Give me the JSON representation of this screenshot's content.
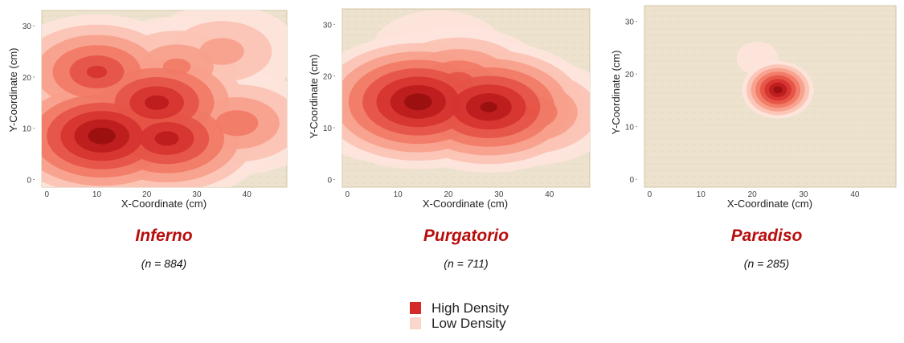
{
  "chart_data": [
    {
      "type": "heatmap",
      "title": "Inferno",
      "subtitle": "(n = 884)",
      "xlabel": "X-Coordinate (cm)",
      "ylabel": "Y-Coordinate (cm)",
      "xlim": [
        -1,
        48
      ],
      "ylim": [
        -1.5,
        33
      ],
      "xticks": [
        0,
        10,
        20,
        30,
        40
      ],
      "yticks": [
        0,
        10,
        20,
        30
      ],
      "density_peaks": [
        {
          "x": 11,
          "y": 8.5,
          "weight": 1.0
        },
        {
          "x": 22,
          "y": 15,
          "weight": 0.85
        },
        {
          "x": 24,
          "y": 8,
          "weight": 0.85
        },
        {
          "x": 10,
          "y": 21,
          "weight": 0.7
        },
        {
          "x": 26,
          "y": 22,
          "weight": 0.45
        },
        {
          "x": 38,
          "y": 11,
          "weight": 0.5
        },
        {
          "x": 35,
          "y": 25,
          "weight": 0.35
        }
      ]
    },
    {
      "type": "heatmap",
      "title": "Purgatorio",
      "subtitle": "(n = 711)",
      "xlabel": "X-Coordinate (cm)",
      "ylabel": "Y-Coordinate (cm)",
      "xlim": [
        -1,
        48
      ],
      "ylim": [
        -1.5,
        33
      ],
      "xticks": [
        0,
        10,
        20,
        30,
        40
      ],
      "yticks": [
        0,
        10,
        20,
        30
      ],
      "density_peaks": [
        {
          "x": 14,
          "y": 15,
          "weight": 1.0
        },
        {
          "x": 28,
          "y": 14,
          "weight": 0.95
        },
        {
          "x": 22,
          "y": 19,
          "weight": 0.6
        },
        {
          "x": 36,
          "y": 13,
          "weight": 0.55
        },
        {
          "x": 8,
          "y": 13,
          "weight": 0.45
        },
        {
          "x": 18,
          "y": 25,
          "weight": 0.1
        }
      ]
    },
    {
      "type": "heatmap",
      "title": "Paradiso",
      "subtitle": "(n = 285)",
      "xlabel": "X-Coordinate (cm)",
      "ylabel": "Y-Coordinate (cm)",
      "xlim": [
        -1,
        48
      ],
      "ylim": [
        -1.5,
        33
      ],
      "xticks": [
        0,
        10,
        20,
        30,
        40
      ],
      "yticks": [
        0,
        10,
        20,
        30
      ],
      "density_peaks": [
        {
          "x": 25,
          "y": 17,
          "weight": 1.0
        },
        {
          "x": 21,
          "y": 23,
          "weight": 0.06
        }
      ]
    }
  ],
  "legend": {
    "items": [
      {
        "label": "High Density",
        "color": "#d42a2a"
      },
      {
        "label": "Low Density",
        "color": "#fbd6cc"
      }
    ]
  },
  "colors": {
    "paper": "#ede2cd",
    "density_scale": [
      "#fde4dc",
      "#fbc3b4",
      "#f79f8c",
      "#f17a66",
      "#e65446",
      "#d63330",
      "#bc1c1c",
      "#9a0f10"
    ],
    "title_red": "#b80d0d"
  }
}
